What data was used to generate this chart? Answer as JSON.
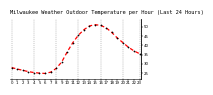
{
  "title": "Milwaukee Weather Outdoor Temperature per Hour (Last 24 Hours)",
  "hours": [
    0,
    1,
    2,
    3,
    4,
    5,
    6,
    7,
    8,
    9,
    10,
    11,
    12,
    13,
    14,
    15,
    16,
    17,
    18,
    19,
    20,
    21,
    22,
    23
  ],
  "temps": [
    28.0,
    27.2,
    26.5,
    25.8,
    25.3,
    25.0,
    24.8,
    25.5,
    27.5,
    31.0,
    36.5,
    41.5,
    45.5,
    48.5,
    50.5,
    51.2,
    50.8,
    49.5,
    47.0,
    44.0,
    41.5,
    39.0,
    37.0,
    35.5
  ],
  "line_color": "#ff0000",
  "marker_color": "#000000",
  "bg_color": "#ffffff",
  "grid_color": "#888888",
  "ylim": [
    22,
    54
  ],
  "yticks": [
    25,
    30,
    35,
    40,
    45,
    50
  ],
  "ytick_labels": [
    "25",
    "30",
    "35",
    "40",
    "45",
    "50"
  ],
  "title_fontsize": 3.8,
  "tick_fontsize": 2.8,
  "vgrid_x": [
    0,
    4,
    8,
    12,
    16,
    20,
    23
  ],
  "line_width": 0.9,
  "marker_size": 1.8
}
